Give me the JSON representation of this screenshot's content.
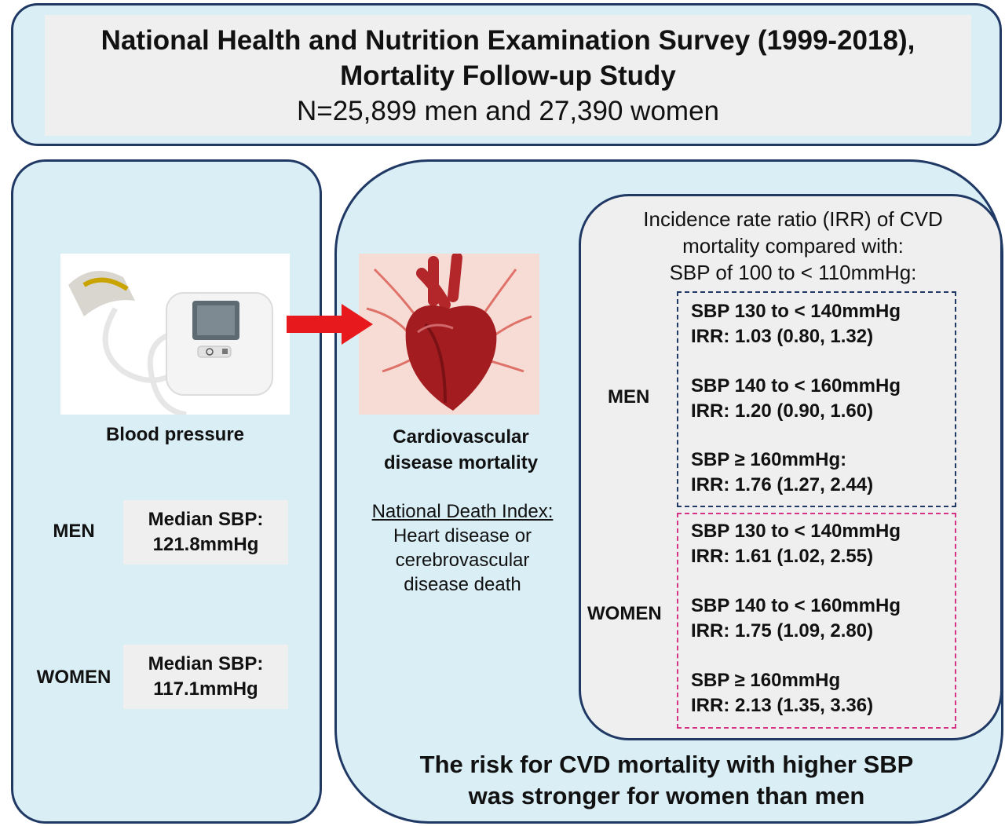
{
  "header": {
    "title_line1": "National Health and Nutrition Examination Survey (1999-2018),",
    "title_line2": "Mortality Follow-up Study",
    "subtitle": "N=25,899 men and 27,390 women"
  },
  "left": {
    "image_icon": "blood-pressure-monitor",
    "caption": "Blood pressure",
    "men_label": "MEN",
    "women_label": "WOMEN",
    "men_median": {
      "line1": "Median SBP:",
      "line2": "121.8mmHg"
    },
    "women_median": {
      "line1": "Median SBP:",
      "line2": "117.1mmHg"
    }
  },
  "right": {
    "image_icon": "heart",
    "caption_line1": "Cardiovascular",
    "caption_line2": "disease mortality",
    "ndi_title": "National Death Index:",
    "ndi_line1": "Heart disease or",
    "ndi_line2": "cerebrovascular",
    "ndi_line3": "disease death",
    "irr_title_line1": "Incidence rate ratio (IRR) of CVD",
    "irr_title_line2": "mortality compared with:",
    "irr_title_line3": "SBP of 100 to < 110mmHg:",
    "men_label": "MEN",
    "women_label": "WOMEN",
    "men": [
      {
        "sbp": "SBP 130 to < 140mmHg",
        "irr": "IRR: 1.03 (0.80, 1.32)"
      },
      {
        "sbp": "SBP 140 to < 160mmHg",
        "irr": "IRR: 1.20 (0.90, 1.60)"
      },
      {
        "sbp": "SBP ≥ 160mmHg:",
        "irr": "IRR: 1.76 (1.27, 2.44)"
      }
    ],
    "women": [
      {
        "sbp": "SBP 130 to < 140mmHg",
        "irr": "IRR: 1.61 (1.02, 2.55)"
      },
      {
        "sbp": "SBP 140 to < 160mmHg",
        "irr": "IRR: 1.75 (1.09, 2.80)"
      },
      {
        "sbp": "SBP ≥ 160mmHg",
        "irr": "IRR: 2.13 (1.35, 3.36)"
      }
    ],
    "conclusion_line1": "The risk for CVD mortality with higher SBP",
    "conclusion_line2": "was stronger for women than men"
  },
  "colors": {
    "panel_fill": "#daeef6",
    "panel_border": "#1f3864",
    "inner_fill": "#efefef",
    "men_dash": "#1f3864",
    "women_dash": "#d63384",
    "arrow": "#e8191c"
  }
}
